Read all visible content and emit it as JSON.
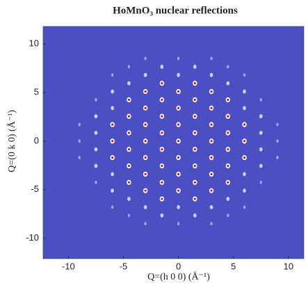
{
  "chart_data": {
    "type": "scatter",
    "title": "HoMnO₃ nuclear reflections",
    "x_label": "Q=(h 0 0) (Å⁻¹)",
    "y_label": "Q=(0 k 0) (Å⁻¹)",
    "xlim": [
      -12.3,
      11.4
    ],
    "ylim": [
      -12.1,
      11.8
    ],
    "xticks": [
      -10,
      -5,
      0,
      5,
      10
    ],
    "yticks": [
      -10,
      -5,
      0,
      5,
      10
    ],
    "grid": false,
    "colors": [
      "#4a50c2",
      "#ffffff",
      "#d01010"
    ],
    "x": [
      -9,
      -9,
      -9,
      -7.5,
      -7.5,
      -7.5,
      -7.5,
      -7.5,
      -7.5,
      -6,
      -6,
      -6,
      -6,
      -6,
      -6,
      -6,
      -6,
      -6,
      -4.5,
      -4.5,
      -4.5,
      -4.5,
      -4.5,
      -4.5,
      -4.5,
      -4.5,
      -4.5,
      -4.5,
      -3,
      -3,
      -3,
      -3,
      -3,
      -3,
      -3,
      -3,
      -3,
      -3,
      -3,
      -1.5,
      -1.5,
      -1.5,
      -1.5,
      -1.5,
      -1.5,
      -1.5,
      -1.5,
      -1.5,
      -1.5,
      0,
      0,
      0,
      0,
      0,
      0,
      0,
      0,
      0,
      0,
      0,
      1.5,
      1.5,
      1.5,
      1.5,
      1.5,
      1.5,
      1.5,
      1.5,
      1.5,
      1.5,
      3,
      3,
      3,
      3,
      3,
      3,
      3,
      3,
      3,
      3,
      3,
      4.5,
      4.5,
      4.5,
      4.5,
      4.5,
      4.5,
      4.5,
      4.5,
      4.5,
      4.5,
      6,
      6,
      6,
      6,
      6,
      6,
      6,
      6,
      6,
      7.5,
      7.5,
      7.5,
      7.5,
      7.5,
      7.5,
      9,
      9,
      9
    ],
    "y": [
      -1.7,
      0,
      1.7,
      -4.25,
      -2.55,
      -0.85,
      0.85,
      2.55,
      4.25,
      -6.8,
      -5.1,
      -3.4,
      -1.7,
      0,
      1.7,
      3.4,
      5.1,
      6.8,
      -7.65,
      -5.95,
      -4.25,
      -2.55,
      -0.85,
      0.85,
      2.55,
      4.25,
      5.95,
      7.65,
      -8.5,
      -6.8,
      -5.1,
      -3.4,
      -1.7,
      0,
      1.7,
      3.4,
      5.1,
      6.8,
      8.5,
      -7.65,
      -5.95,
      -4.25,
      -2.55,
      -0.85,
      0.85,
      2.55,
      4.25,
      5.95,
      7.65,
      -8.5,
      -6.8,
      -5.1,
      -3.4,
      -1.7,
      0,
      1.7,
      3.4,
      5.1,
      6.8,
      8.5,
      -7.65,
      -5.95,
      -4.25,
      -2.55,
      -0.85,
      0.85,
      2.55,
      4.25,
      5.95,
      7.65,
      -8.5,
      -6.8,
      -5.1,
      -3.4,
      -1.7,
      0,
      1.7,
      3.4,
      5.1,
      6.8,
      8.5,
      -7.65,
      -5.95,
      -4.25,
      -2.55,
      -0.85,
      0.85,
      2.55,
      4.25,
      5.95,
      7.65,
      -6.8,
      -5.1,
      -3.4,
      -1.7,
      0,
      1.7,
      3.4,
      5.1,
      6.8,
      -4.25,
      -2.55,
      -0.85,
      0.85,
      2.55,
      4.25,
      -1.7,
      0,
      1.7
    ],
    "values": [
      0.3,
      0.3,
      0.3,
      0.3,
      0.6,
      0.6,
      0.6,
      0.6,
      0.3,
      0.3,
      0.6,
      0.6,
      1,
      1,
      1,
      0.6,
      0.6,
      0.3,
      0.3,
      0.6,
      1,
      1,
      1,
      1,
      1,
      1,
      0.6,
      0.3,
      0.3,
      0.6,
      1,
      1,
      1,
      1,
      1,
      1,
      1,
      0.6,
      0.3,
      0.6,
      1,
      1,
      1,
      1,
      1,
      1,
      1,
      1,
      0.6,
      0.3,
      0.6,
      1,
      1,
      1,
      1,
      1,
      1,
      1,
      0.6,
      0.3,
      0.6,
      1,
      1,
      1,
      1,
      1,
      1,
      1,
      1,
      0.6,
      0.3,
      0.6,
      1,
      1,
      1,
      1,
      1,
      1,
      1,
      0.6,
      0.3,
      0.3,
      0.6,
      1,
      1,
      1,
      1,
      1,
      1,
      0.6,
      0.3,
      0.3,
      0.6,
      0.6,
      1,
      1,
      1,
      0.6,
      0.6,
      0.3,
      0.3,
      0.6,
      0.6,
      0.6,
      0.6,
      0.3,
      0.3,
      0.3,
      0.3
    ]
  }
}
